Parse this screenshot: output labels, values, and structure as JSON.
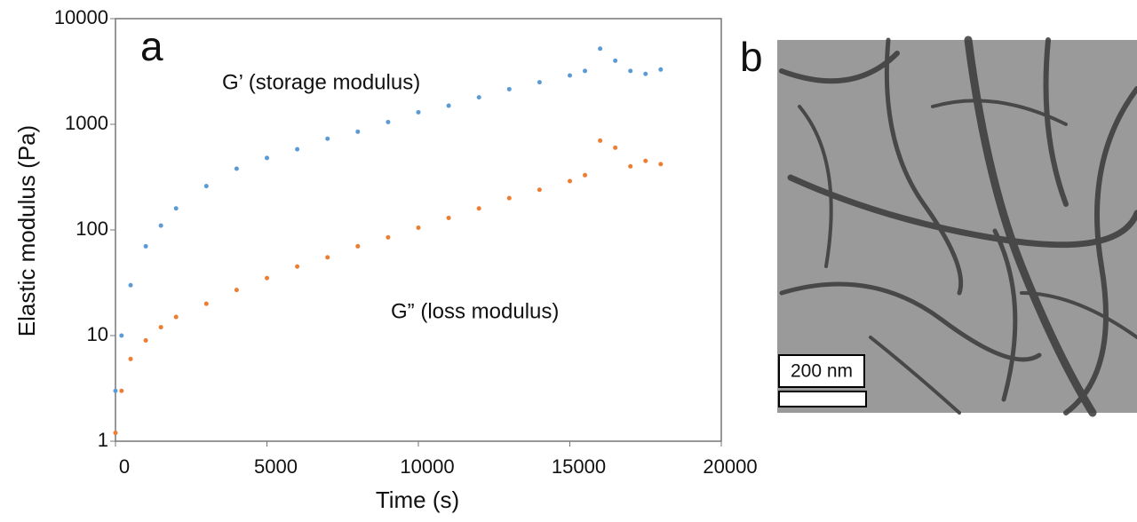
{
  "chart_data": {
    "type": "scatter",
    "ylog": true,
    "xlabel": "Time (s)",
    "ylabel": "Elastic modulus (Pa)",
    "xlim": [
      0,
      20000
    ],
    "xticks": [
      0,
      5000,
      10000,
      15000,
      20000
    ],
    "ylim": [
      1,
      10000
    ],
    "yticks": [
      1,
      10,
      100,
      1000,
      10000
    ],
    "series": [
      {
        "name": "G’ (storage modulus)",
        "color": "#5b9bd5",
        "x": [
          0,
          200,
          500,
          1000,
          1500,
          2000,
          3000,
          4000,
          5000,
          6000,
          7000,
          8000,
          9000,
          10000,
          11000,
          12000,
          13000,
          14000,
          15000,
          15500,
          16000,
          16500,
          17000,
          17500,
          18000
        ],
        "values": [
          3,
          10,
          30,
          70,
          110,
          160,
          260,
          380,
          480,
          580,
          730,
          850,
          1050,
          1300,
          1500,
          1800,
          2150,
          2500,
          2900,
          3200,
          5200,
          4000,
          3200,
          3000,
          3300
        ]
      },
      {
        "name": "G” (loss modulus)",
        "color": "#ed7d31",
        "x": [
          0,
          200,
          500,
          1000,
          1500,
          2000,
          3000,
          4000,
          5000,
          6000,
          7000,
          8000,
          9000,
          10000,
          11000,
          12000,
          13000,
          14000,
          15000,
          15500,
          16000,
          16500,
          17000,
          17500,
          18000
        ],
        "values": [
          1.2,
          3,
          6,
          9,
          12,
          15,
          20,
          27,
          35,
          45,
          55,
          70,
          85,
          105,
          130,
          160,
          200,
          240,
          290,
          330,
          700,
          600,
          400,
          450,
          420
        ]
      }
    ]
  },
  "panel_labels": [
    "a",
    "b"
  ],
  "image": {
    "scale_bar": "200 nm"
  }
}
